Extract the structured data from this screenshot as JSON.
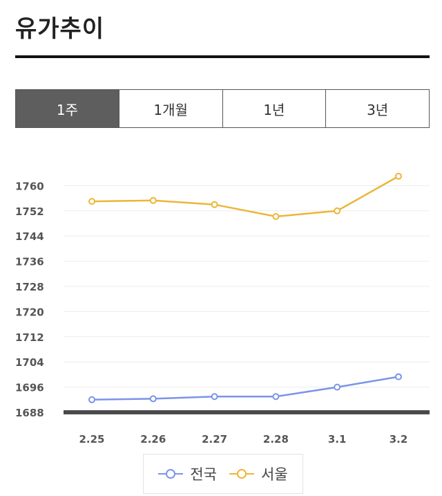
{
  "page": {
    "title": "유가추이"
  },
  "tabs": [
    {
      "label": "1주",
      "active": true
    },
    {
      "label": "1개월",
      "active": false
    },
    {
      "label": "1년",
      "active": false
    },
    {
      "label": "3년",
      "active": false
    }
  ],
  "chart_data": {
    "type": "line",
    "categories": [
      "2.25",
      "2.26",
      "2.27",
      "2.28",
      "3.1",
      "3.2"
    ],
    "ylim": [
      1688,
      1768
    ],
    "yticks": [
      1688,
      1696,
      1704,
      1712,
      1720,
      1728,
      1736,
      1744,
      1752,
      1760
    ],
    "grid": true,
    "legend_placement": "bottom",
    "series": [
      {
        "name": "전국",
        "color": "#7b93e8",
        "values": [
          1692,
          1692.3,
          1693,
          1693,
          1696,
          1699.3
        ]
      },
      {
        "name": "서울",
        "color": "#ecb636",
        "values": [
          1755,
          1755.3,
          1754,
          1750.2,
          1752,
          1763
        ]
      }
    ]
  }
}
